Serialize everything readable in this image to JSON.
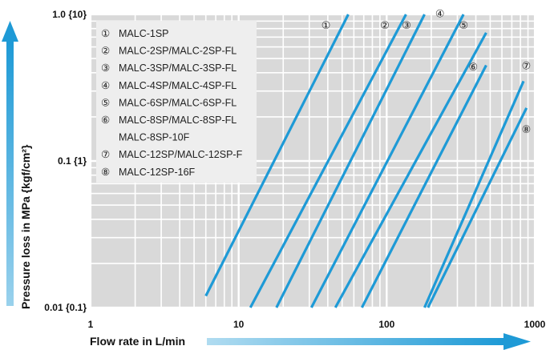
{
  "chart_data": {
    "type": "line",
    "xlabel": "Flow rate in L/min",
    "ylabel": "Pressure loss in MPa {kgf/cm²}",
    "x_scale": "log",
    "y_scale": "log",
    "xlim": [
      1,
      1000
    ],
    "ylim": [
      0.01,
      1.0
    ],
    "x_ticks": [
      "1",
      "10",
      "100",
      "1000"
    ],
    "y_ticks": [
      "0.01 {0.1}",
      "0.1 {1}",
      "1.0 {10}"
    ],
    "grid": true,
    "legend_position": "top-left",
    "line_color": "#1e9ad6",
    "legend": [
      {
        "marker": "①",
        "text": "MALC-1SP"
      },
      {
        "marker": "②",
        "text": "MALC-2SP/MALC-2SP-FL"
      },
      {
        "marker": "③",
        "text": "MALC-3SP/MALC-3SP-FL"
      },
      {
        "marker": "④",
        "text": "MALC-4SP/MALC-4SP-FL"
      },
      {
        "marker": "⑤",
        "text": "MALC-6SP/MALC-6SP-FL"
      },
      {
        "marker": "⑥",
        "text": "MALC-8SP/MALC-8SP-FL"
      },
      {
        "marker": "",
        "text": "MALC-8SP-10F"
      },
      {
        "marker": "⑦",
        "text": "MALC-12SP/MALC-12SP-F"
      },
      {
        "marker": "⑧",
        "text": "MALC-12SP-16F"
      }
    ],
    "series": [
      {
        "name": "①",
        "x": [
          6,
          55
        ],
        "y": [
          0.012,
          1.0
        ]
      },
      {
        "name": "②",
        "x": [
          12,
          135
        ],
        "y": [
          0.01,
          1.0
        ]
      },
      {
        "name": "③",
        "x": [
          18,
          180
        ],
        "y": [
          0.01,
          1.0
        ]
      },
      {
        "name": "④",
        "x": [
          31,
          330
        ],
        "y": [
          0.01,
          1.0
        ]
      },
      {
        "name": "⑤",
        "x": [
          45,
          470
        ],
        "y": [
          0.01,
          0.75
        ]
      },
      {
        "name": "⑥",
        "x": [
          68,
          470
        ],
        "y": [
          0.01,
          0.45
        ]
      },
      {
        "name": "⑦",
        "x": [
          180,
          840
        ],
        "y": [
          0.01,
          0.35
        ]
      },
      {
        "name": "⑧",
        "x": [
          190,
          880
        ],
        "y": [
          0.01,
          0.23
        ]
      }
    ]
  }
}
